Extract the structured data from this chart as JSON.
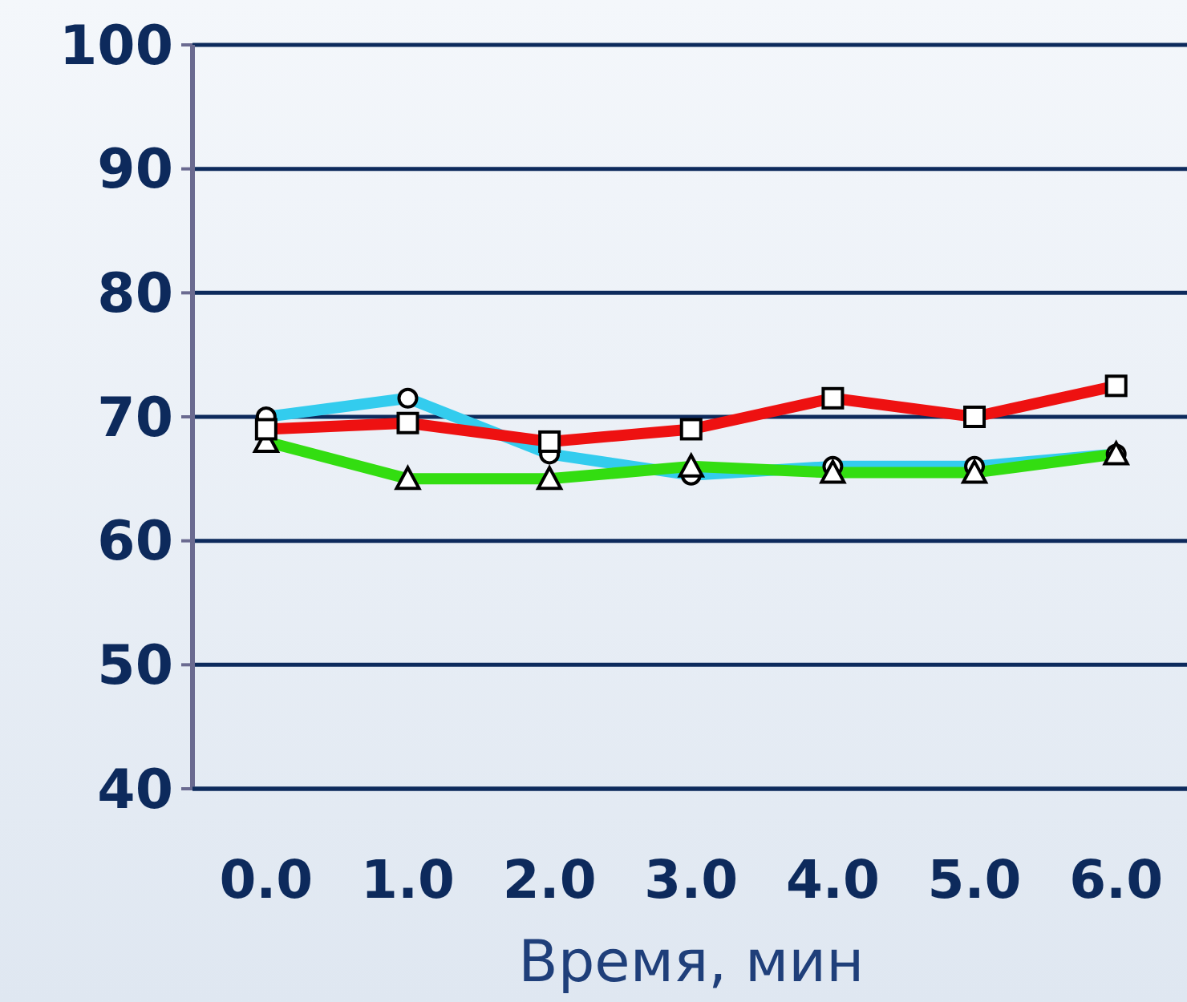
{
  "chart_data": {
    "type": "line",
    "xlabel": "Время, мин",
    "x": [
      0,
      1,
      2,
      3,
      4,
      5,
      6
    ],
    "xlim": [
      -0.52,
      6.5
    ],
    "xticks": [
      {
        "value": 0,
        "label": "0.0"
      },
      {
        "value": 1,
        "label": "1.0"
      },
      {
        "value": 2,
        "label": "2.0"
      },
      {
        "value": 3,
        "label": "3.0"
      },
      {
        "value": 4,
        "label": "4.0"
      },
      {
        "value": 5,
        "label": "5.0"
      },
      {
        "value": 6,
        "label": "6.0"
      }
    ],
    "ylim": [
      40,
      100
    ],
    "yticks": [
      40,
      50,
      60,
      70,
      80,
      90,
      100
    ],
    "grid": "y",
    "series": [
      {
        "color": "#33ccee",
        "marker": "circle",
        "values": [
          70,
          71.5,
          67,
          65.3,
          66,
          66,
          67
        ]
      },
      {
        "color": "#33dd11",
        "marker": "triangle",
        "values": [
          68,
          65,
          65,
          66,
          65.5,
          65.5,
          67
        ]
      },
      {
        "color": "#ee1111",
        "marker": "square",
        "values": [
          69,
          69.5,
          68,
          69,
          71.5,
          70,
          72.5
        ]
      }
    ]
  }
}
